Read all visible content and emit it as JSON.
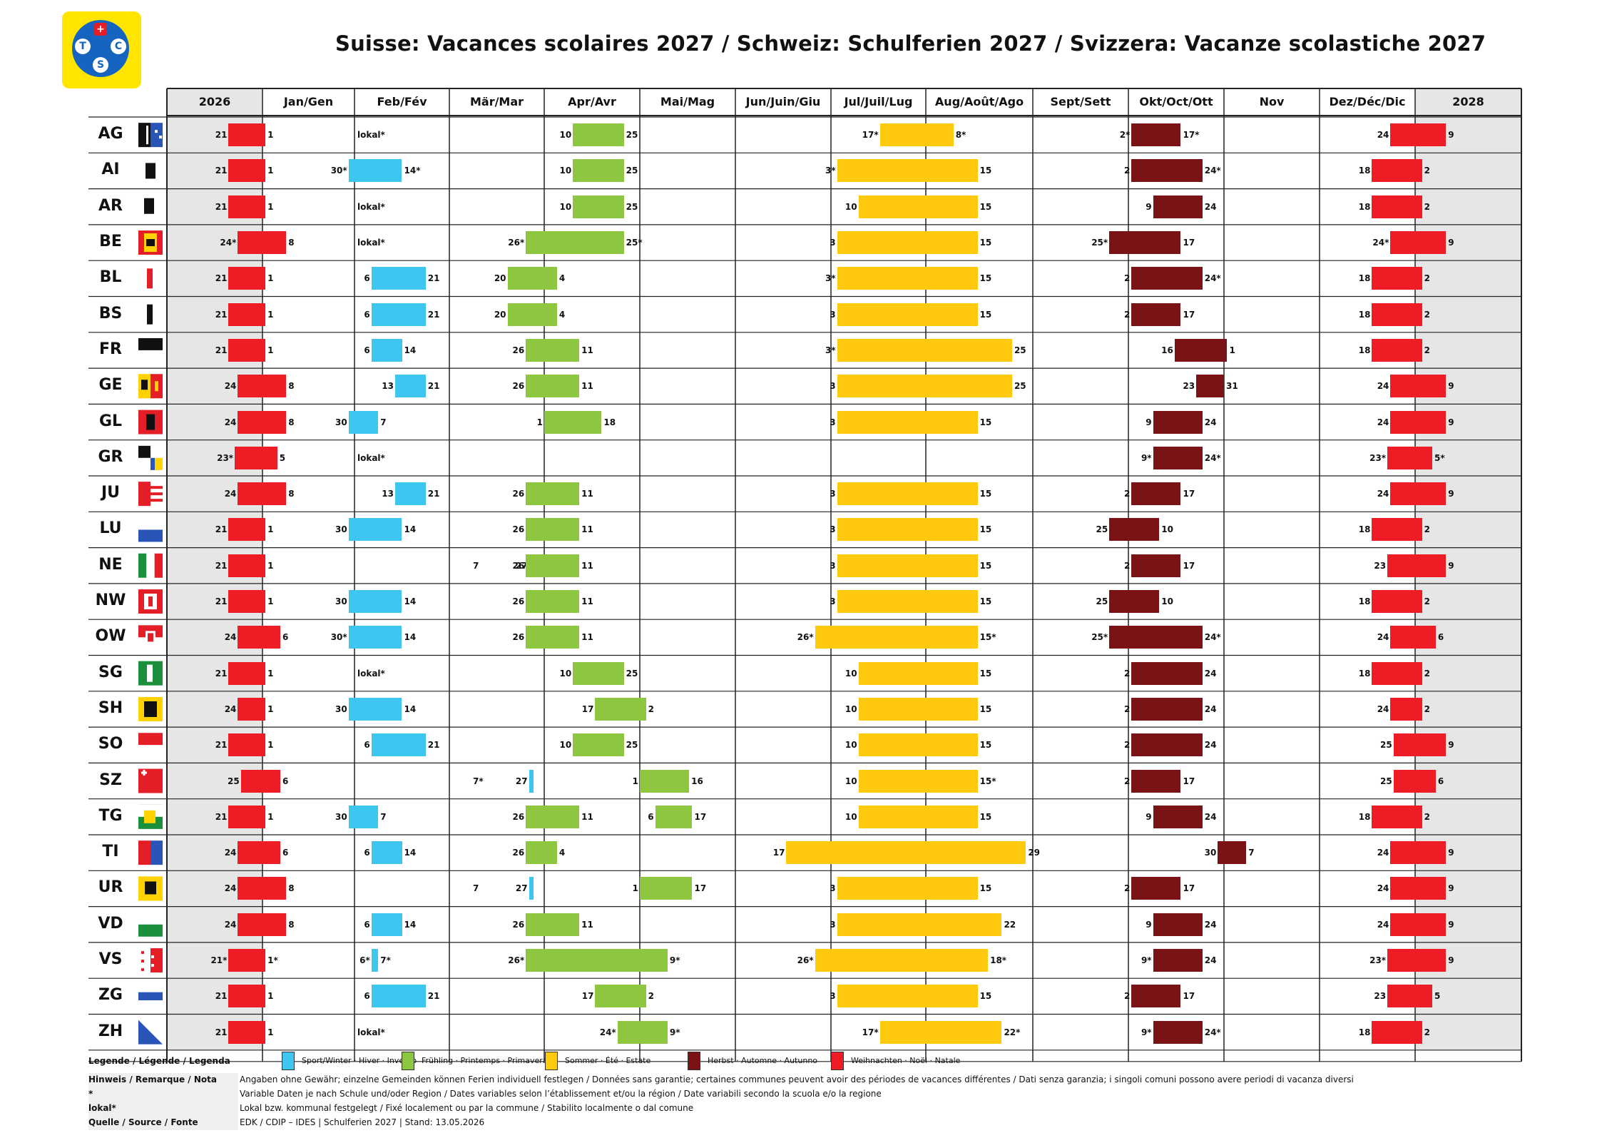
{
  "title": "Suisse: Vacances scolaires 2027 / Schweiz: Schulferien 2027 / Svizzera: Vacanze scolastiche 2027",
  "logo": {
    "letters": [
      "T",
      "C",
      "S"
    ],
    "cross": "+"
  },
  "columns": [
    "2026",
    "Jan/Gen",
    "Feb/Fév",
    "Mär/Mar",
    "Apr/Avr",
    "Mai/Mag",
    "Jun/Juin/Giu",
    "Jul/Juil/Lug",
    "Aug/Août/Ago",
    "Sept/Sett",
    "Okt/Oct/Ott",
    "Nov",
    "Dez/Déc/Dic",
    "2028"
  ],
  "colors": {
    "sport": "#3cc6f0",
    "spring": "#8dc63f",
    "summer": "#ffc90e",
    "autumn": "#7b1216",
    "christmas": "#ee1c25",
    "edge": "#e6e6e6"
  },
  "cantons": [
    {
      "code": "AG",
      "flag": "ag-flag",
      "xmas1": [
        "21",
        "1"
      ],
      "sport": [
        "lokal*",
        ""
      ],
      "spring": [
        "10",
        "25"
      ],
      "summer": [
        "17*",
        "8*"
      ],
      "autumn": [
        "2*",
        "17*"
      ],
      "xmas2": [
        "24",
        "9"
      ]
    },
    {
      "code": "AI",
      "flag": "ai-flag",
      "xmas1": [
        "21",
        "1"
      ],
      "sport": [
        "30*",
        "14*"
      ],
      "spring": [
        "10",
        "25"
      ],
      "summer": [
        "3*",
        "15"
      ],
      "autumn": [
        "2",
        "24*"
      ],
      "xmas2": [
        "18",
        "2"
      ]
    },
    {
      "code": "AR",
      "flag": "ar-flag",
      "xmas1": [
        "21",
        "1"
      ],
      "sport": [
        "lokal*",
        ""
      ],
      "spring": [
        "10",
        "25"
      ],
      "summer": [
        "10",
        "15"
      ],
      "autumn": [
        "9",
        "24"
      ],
      "xmas2": [
        "18",
        "2"
      ]
    },
    {
      "code": "BE",
      "flag": "be-flag",
      "xmas1": [
        "24*",
        "8"
      ],
      "sport": [
        "lokal*",
        ""
      ],
      "spring": [
        "26*",
        "25*"
      ],
      "summer": [
        "3",
        "15"
      ],
      "autumn": [
        "25*",
        "17"
      ],
      "xmas2": [
        "24*",
        "9"
      ]
    },
    {
      "code": "BL",
      "flag": "bl-flag",
      "xmas1": [
        "21",
        "1"
      ],
      "sport": [
        "6",
        "21"
      ],
      "spring": [
        "20",
        "4"
      ],
      "summer": [
        "3*",
        "15"
      ],
      "autumn": [
        "2",
        "24*"
      ],
      "xmas2": [
        "18",
        "2"
      ]
    },
    {
      "code": "BS",
      "flag": "bs-flag",
      "xmas1": [
        "21",
        "1"
      ],
      "sport": [
        "6",
        "21"
      ],
      "spring": [
        "20",
        "4"
      ],
      "summer": [
        "3",
        "15"
      ],
      "autumn": [
        "2",
        "17"
      ],
      "xmas2": [
        "18",
        "2"
      ]
    },
    {
      "code": "FR",
      "flag": "fr-flag",
      "xmas1": [
        "21",
        "1"
      ],
      "sport": [
        "6",
        "14"
      ],
      "spring": [
        "26",
        "11"
      ],
      "summer": [
        "3*",
        "25"
      ],
      "autumn": [
        "16",
        "1"
      ],
      "xmas2": [
        "18",
        "2"
      ]
    },
    {
      "code": "GE",
      "flag": "ge-flag",
      "xmas1": [
        "24",
        "8"
      ],
      "sport": [
        "13",
        "21"
      ],
      "spring": [
        "26",
        "11"
      ],
      "summer": [
        "3",
        "25"
      ],
      "autumn": [
        "23",
        "31"
      ],
      "xmas2": [
        "24",
        "9"
      ]
    },
    {
      "code": "GL",
      "flag": "gl-flag",
      "xmas1": [
        "24",
        "8"
      ],
      "sport": [
        "30",
        "7"
      ],
      "spring": [
        "1",
        "18"
      ],
      "summer": [
        "3",
        "15"
      ],
      "autumn": [
        "9",
        "24"
      ],
      "xmas2": [
        "24",
        "9"
      ]
    },
    {
      "code": "GR",
      "flag": "gr-flag",
      "xmas1": [
        "23*",
        "5"
      ],
      "sport": [
        "lokal*",
        ""
      ],
      "spring": [
        "",
        ""
      ],
      "summer": [
        "",
        ""
      ],
      "autumn": [
        "9*",
        "24*"
      ],
      "xmas2": [
        "23*",
        "5*"
      ]
    },
    {
      "code": "JU",
      "flag": "ju-flag",
      "xmas1": [
        "24",
        "8"
      ],
      "sport": [
        "13",
        "21"
      ],
      "spring": [
        "26",
        "11"
      ],
      "summer": [
        "3",
        "15"
      ],
      "autumn": [
        "2",
        "17"
      ],
      "xmas2": [
        "24",
        "9"
      ]
    },
    {
      "code": "LU",
      "flag": "lu-flag",
      "xmas1": [
        "21",
        "1"
      ],
      "sport": [
        "30",
        "14"
      ],
      "spring": [
        "26",
        "11"
      ],
      "summer": [
        "3",
        "15"
      ],
      "autumn": [
        "25",
        "10"
      ],
      "xmas2": [
        "18",
        "2"
      ]
    },
    {
      "code": "NE",
      "flag": "ne-flag",
      "xmas1": [
        "21",
        "1"
      ],
      "sport": [
        "27",
        "7"
      ],
      "spring": [
        "26",
        "11"
      ],
      "summer": [
        "3",
        "15"
      ],
      "autumn": [
        "2",
        "17"
      ],
      "xmas2": [
        "23",
        "9"
      ]
    },
    {
      "code": "NW",
      "flag": "nw-flag",
      "xmas1": [
        "21",
        "1"
      ],
      "sport": [
        "30",
        "14"
      ],
      "spring": [
        "26",
        "11"
      ],
      "summer": [
        "3",
        "15"
      ],
      "autumn": [
        "25",
        "10"
      ],
      "xmas2": [
        "18",
        "2"
      ]
    },
    {
      "code": "OW",
      "flag": "ow-flag",
      "xmas1": [
        "24",
        "6"
      ],
      "sport": [
        "30*",
        "14"
      ],
      "spring": [
        "26",
        "11"
      ],
      "summer": [
        "26*",
        "15*"
      ],
      "autumn": [
        "25*",
        "24*"
      ],
      "xmas2": [
        "24",
        "6"
      ]
    },
    {
      "code": "SG",
      "flag": "sg-flag",
      "xmas1": [
        "21",
        "1"
      ],
      "sport": [
        "lokal*",
        ""
      ],
      "spring": [
        "10",
        "25"
      ],
      "summer": [
        "10",
        "15"
      ],
      "autumn": [
        "2",
        "24"
      ],
      "xmas2": [
        "18",
        "2"
      ]
    },
    {
      "code": "SH",
      "flag": "sh-flag",
      "xmas1": [
        "24",
        "1"
      ],
      "sport": [
        "30",
        "14"
      ],
      "spring": [
        "17",
        "2"
      ],
      "summer": [
        "10",
        "15"
      ],
      "autumn": [
        "2",
        "24"
      ],
      "xmas2": [
        "24",
        "2"
      ]
    },
    {
      "code": "SO",
      "flag": "so-flag",
      "xmas1": [
        "21",
        "1"
      ],
      "sport": [
        "6",
        "21"
      ],
      "spring": [
        "10",
        "25"
      ],
      "summer": [
        "10",
        "15"
      ],
      "autumn": [
        "2",
        "24"
      ],
      "xmas2": [
        "25",
        "9"
      ]
    },
    {
      "code": "SZ",
      "flag": "sz-flag",
      "xmas1": [
        "25",
        "6"
      ],
      "sport": [
        "27",
        "7*"
      ],
      "spring": [
        "1",
        "16"
      ],
      "summer": [
        "10",
        "15*"
      ],
      "autumn": [
        "2",
        "17"
      ],
      "xmas2": [
        "25",
        "6"
      ]
    },
    {
      "code": "TG",
      "flag": "tg-flag",
      "xmas1": [
        "21",
        "1"
      ],
      "sport": [
        "30",
        "7"
      ],
      "spring": [
        "26",
        "11"
      ],
      "spring2": [
        "6",
        "17"
      ],
      "summer": [
        "10",
        "15"
      ],
      "autumn": [
        "9",
        "24"
      ],
      "xmas2": [
        "18",
        "2"
      ]
    },
    {
      "code": "TI",
      "flag": "ti-flag",
      "xmas1": [
        "24",
        "6"
      ],
      "sport": [
        "6",
        "14"
      ],
      "spring": [
        "26",
        "4"
      ],
      "summer": [
        "17",
        "29"
      ],
      "autumn": [
        "30",
        "7"
      ],
      "xmas2": [
        "24",
        "9"
      ]
    },
    {
      "code": "UR",
      "flag": "ur-flag",
      "xmas1": [
        "24",
        "8"
      ],
      "sport": [
        "27",
        "7"
      ],
      "spring": [
        "1",
        "17"
      ],
      "summer": [
        "3",
        "15"
      ],
      "autumn": [
        "2",
        "17"
      ],
      "xmas2": [
        "24",
        "9"
      ]
    },
    {
      "code": "VD",
      "flag": "vd-flag",
      "xmas1": [
        "24",
        "8"
      ],
      "sport": [
        "6",
        "14"
      ],
      "spring": [
        "26",
        "11"
      ],
      "summer": [
        "3",
        "22"
      ],
      "autumn": [
        "9",
        "24"
      ],
      "xmas2": [
        "24",
        "9"
      ]
    },
    {
      "code": "VS",
      "flag": "vs-flag",
      "xmas1": [
        "21*",
        "1*"
      ],
      "sport": [
        "6*",
        "7*"
      ],
      "spring": [
        "26*",
        "9*"
      ],
      "summer": [
        "26*",
        "18*"
      ],
      "autumn": [
        "9*",
        "24"
      ],
      "xmas2": [
        "23*",
        "9"
      ]
    },
    {
      "code": "ZG",
      "flag": "zg-flag",
      "xmas1": [
        "21",
        "1"
      ],
      "sport": [
        "6",
        "21"
      ],
      "spring": [
        "17",
        "2"
      ],
      "summer": [
        "3",
        "15"
      ],
      "autumn": [
        "2",
        "17"
      ],
      "xmas2": [
        "23",
        "5"
      ]
    },
    {
      "code": "ZH",
      "flag": "zh-flag",
      "xmas1": [
        "21",
        "1"
      ],
      "sport": [
        "lokal*",
        ""
      ],
      "spring": [
        "24*",
        "9*"
      ],
      "summer": [
        "17*",
        "22*"
      ],
      "autumn": [
        "9*",
        "24*"
      ],
      "xmas2": [
        "18",
        "2"
      ]
    }
  ],
  "legend": {
    "title": "Legende / Légende / Legenda",
    "items": [
      {
        "key": "sport",
        "label": "Sport/Winter · Hiver · Inverno"
      },
      {
        "key": "spring",
        "label": "Frühling · Printemps · Primavera"
      },
      {
        "key": "summer",
        "label": "Sommer · Été · Estate"
      },
      {
        "key": "autumn",
        "label": "Herbst · Automne · Autunno"
      },
      {
        "key": "christmas",
        "label": "Weihnachten · Noël · Natale"
      }
    ]
  },
  "footer": [
    {
      "label": "Hinweis / Remarque / Nota",
      "text": "Angaben ohne Gewähr; einzelne Gemeinden können Ferien individuell festlegen / Données sans garantie; certaines communes peuvent avoir des périodes de vacances différentes / Dati senza garanzia; i singoli comuni possono avere periodi di vacanza diversi"
    },
    {
      "label": "*",
      "text": "Variable Daten je nach Schule und/oder Region / Dates variables selon l’établissement et/ou la région / Date variabili secondo la scuola e/o la regione"
    },
    {
      "label": "lokal*",
      "text": "Lokal bzw. kommunal festgelegt / Fixé localement ou par la commune / Stabilito localmente o dal comune"
    },
    {
      "label": "Quelle / Source / Fonte",
      "text": "EDK / CDIP – IDES | Schulferien 2027 | Stand: 13.05.2026"
    }
  ]
}
